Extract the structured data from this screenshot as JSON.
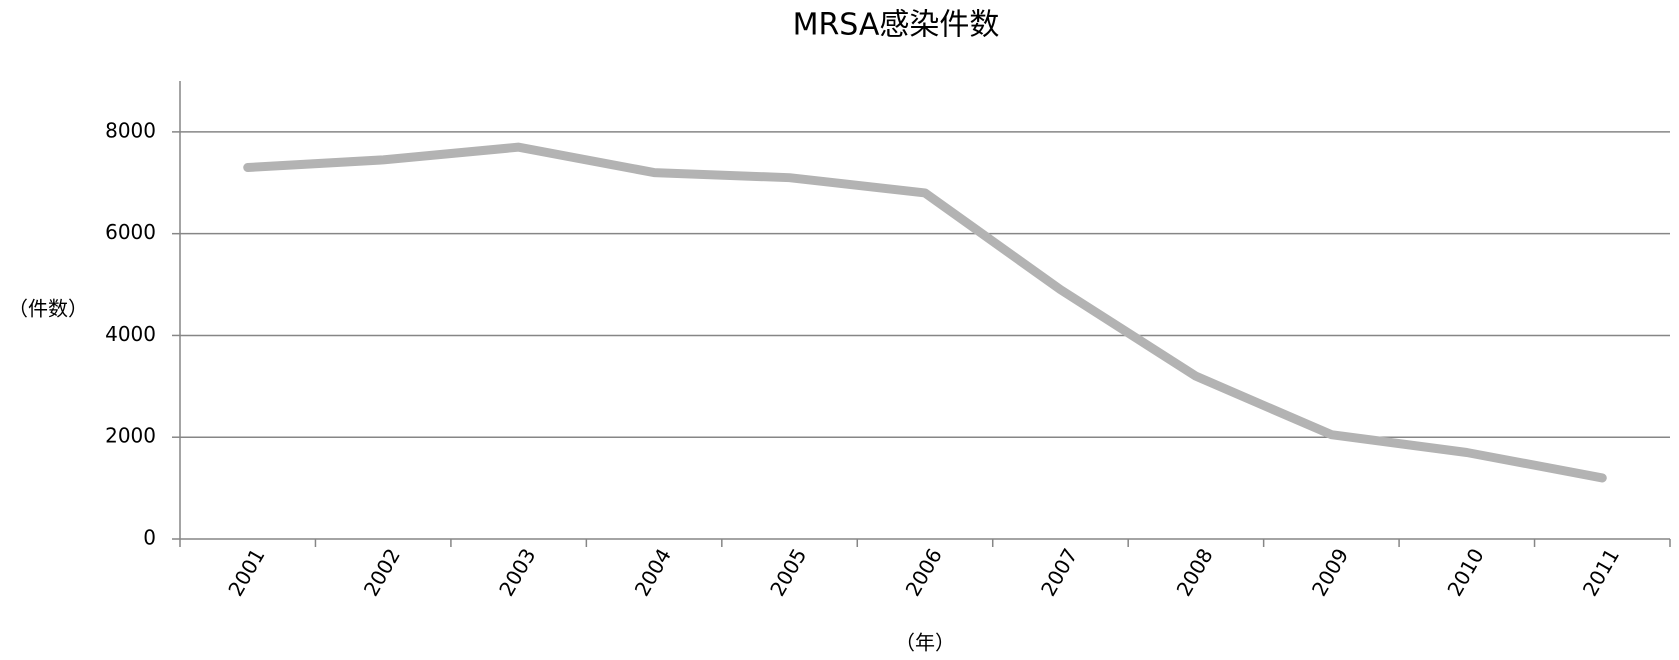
{
  "chart_data": {
    "type": "line",
    "title": "MRSA感染件数",
    "x_label": "（年）",
    "y_label": "（件数）",
    "categories": [
      "2001",
      "2002",
      "2003",
      "2004",
      "2005",
      "2006",
      "2007",
      "2008",
      "2009",
      "2010",
      "2011"
    ],
    "values": [
      7300,
      7450,
      7700,
      7200,
      7100,
      6800,
      4900,
      3200,
      2050,
      1700,
      1200
    ],
    "color": "#b3b3b3",
    "ylim": [
      0,
      9000
    ],
    "yticks": [
      0,
      2000,
      4000,
      6000,
      8000
    ],
    "grid": true
  }
}
